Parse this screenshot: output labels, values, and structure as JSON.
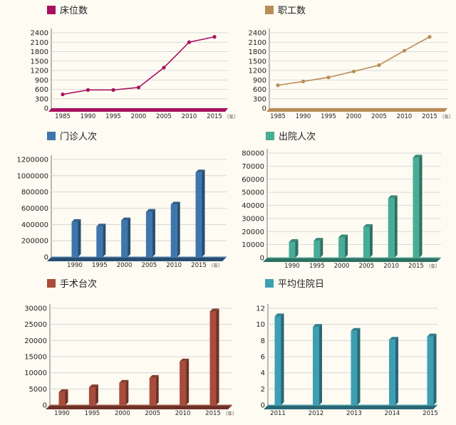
{
  "chart_data": [
    {
      "type": "line",
      "title": "床位数",
      "color": "#a8115f",
      "categories": [
        "1985",
        "1990",
        "1995",
        "2000",
        "2005",
        "2010",
        "2015"
      ],
      "values": [
        440,
        580,
        580,
        660,
        1290,
        2100,
        2270
      ],
      "ylim": [
        0,
        2400
      ],
      "yticks": [
        0,
        300,
        600,
        900,
        1200,
        1500,
        1800,
        2100,
        2400
      ],
      "unit": "（年）"
    },
    {
      "type": "line",
      "title": "职工数",
      "color": "#b98d56",
      "categories": [
        "1985",
        "1990",
        "1995",
        "2000",
        "2005",
        "2010",
        "2015"
      ],
      "values": [
        730,
        850,
        980,
        1170,
        1370,
        1830,
        2270
      ],
      "ylim": [
        0,
        2400
      ],
      "yticks": [
        0,
        300,
        600,
        900,
        1200,
        1500,
        1800,
        2100,
        2400
      ],
      "unit": "（年）"
    },
    {
      "type": "bar",
      "title": "门诊人次",
      "color": "#3e77ae",
      "categories": [
        "1990",
        "1995",
        "2000",
        "2005",
        "2010",
        "2015"
      ],
      "values": [
        430000,
        375000,
        450000,
        555000,
        645000,
        1040000
      ],
      "ylim": [
        0,
        1200000
      ],
      "yticks": [
        0,
        200000,
        400000,
        600000,
        800000,
        1000000,
        1200000
      ],
      "unit": "（年）"
    },
    {
      "type": "bar",
      "title": "出院人次",
      "color": "#47ad96",
      "categories": [
        "1990",
        "1995",
        "2000",
        "2005",
        "2010",
        "2015"
      ],
      "values": [
        12000,
        13000,
        15500,
        23500,
        45500,
        76500
      ],
      "ylim": [
        0,
        80000
      ],
      "yticks": [
        0,
        10000,
        20000,
        30000,
        40000,
        50000,
        60000,
        70000,
        80000
      ],
      "unit": "（年）"
    },
    {
      "type": "bar",
      "title": "手术台次",
      "color": "#a94c3b",
      "categories": [
        "1990",
        "1995",
        "2000",
        "2005",
        "2010",
        "2015"
      ],
      "values": [
        4000,
        5500,
        6900,
        8400,
        13500,
        29000
      ],
      "ylim": [
        0,
        30000
      ],
      "yticks": [
        0,
        5000,
        10000,
        15000,
        20000,
        25000,
        30000
      ],
      "unit": "（年）"
    },
    {
      "type": "bar",
      "title": "平均住院日",
      "color": "#3e9fb2",
      "categories": [
        "2011",
        "2012",
        "2013",
        "2014",
        "2015"
      ],
      "values": [
        11,
        9.7,
        9.2,
        8.1,
        8.5
      ],
      "ylim": [
        0,
        12
      ],
      "yticks": [
        0,
        2,
        4,
        6,
        8,
        10,
        12
      ],
      "unit": ""
    }
  ]
}
